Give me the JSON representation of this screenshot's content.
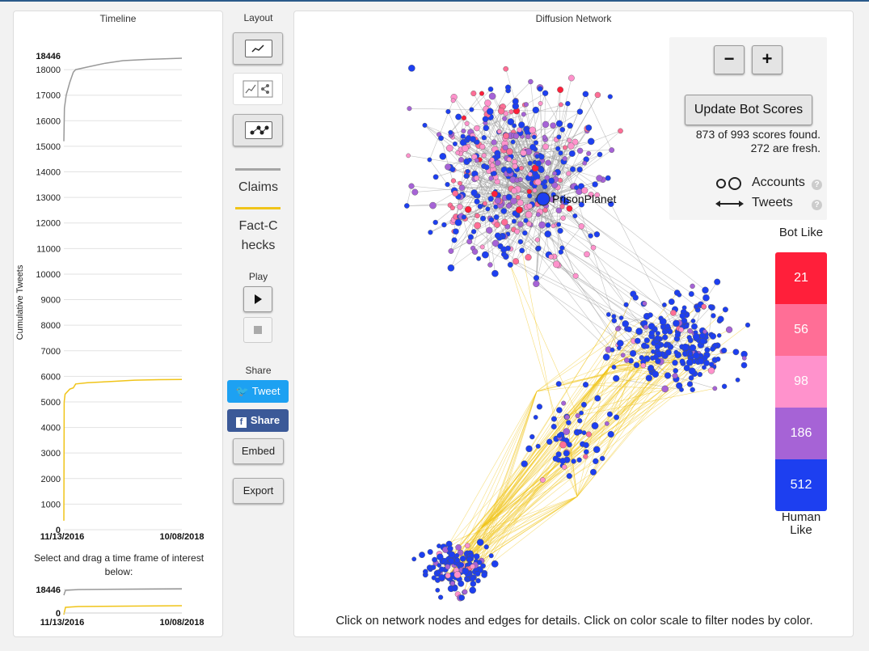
{
  "timeline": {
    "title": "Timeline",
    "ylabel": "Cumulative Tweets",
    "ticks": [
      "0",
      "1000",
      "2000",
      "3000",
      "4000",
      "5000",
      "6000",
      "7000",
      "8000",
      "9000",
      "10000",
      "11000",
      "12000",
      "13000",
      "14000",
      "15000",
      "16000",
      "17000",
      "18000"
    ],
    "max_label": "18446",
    "start_date": "11/13/2016",
    "end_date": "10/08/2018",
    "hint": "Select and drag a time frame of interest below:",
    "mini_max": "18446",
    "mini_zero": "0",
    "mini_start": "11/13/2016",
    "mini_end": "10/08/2018"
  },
  "chart_data": {
    "type": "line",
    "ylabel": "Cumulative Tweets",
    "ylim": [
      0,
      18446
    ],
    "x_range": [
      "11/13/2016",
      "10/08/2018"
    ],
    "series": [
      {
        "color": "#999999",
        "x": [
          0,
          0.005,
          0.02,
          0.05,
          0.08,
          0.1,
          0.2,
          0.35,
          0.5,
          0.7,
          1.0
        ],
        "y": [
          15200,
          16500,
          17000,
          17500,
          17900,
          18000,
          18100,
          18250,
          18350,
          18400,
          18446
        ]
      },
      {
        "color": "#f0c419",
        "x": [
          0,
          0.003,
          0.01,
          0.05,
          0.08,
          0.1,
          0.2,
          0.4,
          0.6,
          0.8,
          1.0
        ],
        "y": [
          350,
          5000,
          5300,
          5500,
          5550,
          5700,
          5750,
          5800,
          5850,
          5870,
          5880
        ]
      }
    ]
  },
  "controls": {
    "layout_title": "Layout",
    "claims_label": "Claims",
    "factchecks_label": "Fact-Checks",
    "claims_color": "#a5a5a5",
    "factchecks_color": "#f0c419",
    "play_label": "Play",
    "share_label": "Share",
    "tweet_label": "Tweet",
    "fb_share_label": "Share",
    "embed_label": "Embed",
    "export_label": "Export",
    "tweet_color": "#1da1f2",
    "fb_color": "#3b5998"
  },
  "network": {
    "title": "Diffusion Network",
    "zoom_out": "−",
    "zoom_in": "+",
    "update_label": "Update Bot Scores",
    "scores_found": "873 of 993 scores found.",
    "scores_fresh": "272 are fresh.",
    "accounts_label": "Accounts",
    "tweets_label": "Tweets",
    "bot_like": "Bot Like",
    "human_like": "Human Like",
    "node_label": "PrisonPlanet",
    "caption": "Click on network nodes and edges for details. Click on color scale to filter nodes by color.",
    "scale": [
      {
        "count": "21",
        "color": "#ff1f3a"
      },
      {
        "count": "56",
        "color": "#ff6e96"
      },
      {
        "count": "98",
        "color": "#ff92cc"
      },
      {
        "count": "186",
        "color": "#a663d6"
      },
      {
        "count": "512",
        "color": "#1d3ff0"
      }
    ]
  }
}
